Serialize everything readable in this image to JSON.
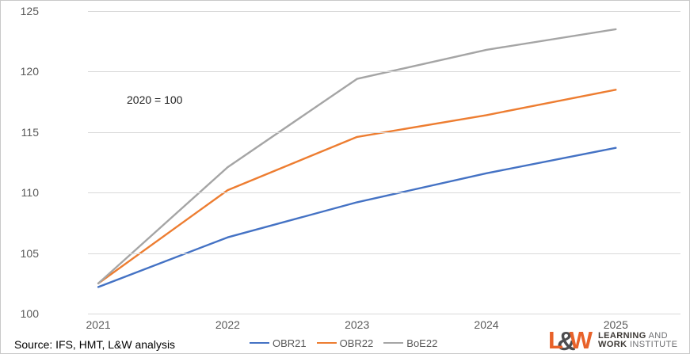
{
  "chart_data": {
    "type": "line",
    "title": "",
    "annotation": "2020 = 100",
    "x": [
      2021,
      2022,
      2023,
      2024,
      2025
    ],
    "xlim": [
      2020.92,
      2025.5
    ],
    "ylim": [
      100,
      125
    ],
    "yticks": [
      100,
      105,
      110,
      115,
      120,
      125
    ],
    "grid": true,
    "legend_position": "bottom",
    "series": [
      {
        "name": "OBR21",
        "color": "#4472C4",
        "values": [
          102.2,
          106.3,
          109.2,
          111.6,
          113.7
        ]
      },
      {
        "name": "OBR22",
        "color": "#ED7D31",
        "values": [
          102.5,
          110.2,
          114.6,
          116.4,
          118.5
        ]
      },
      {
        "name": "BoE22",
        "color": "#A5A5A5",
        "values": [
          102.5,
          112.1,
          119.4,
          121.8,
          123.5
        ]
      }
    ]
  },
  "footer": {
    "source": "Source: IFS, HMT, L&W analysis"
  },
  "logo": {
    "letter_l": "L",
    "amp": "&",
    "letter_w": "W",
    "line1_bold": "LEARNING",
    "line1_light": "AND",
    "line2_bold": "WORK",
    "line2_light": "INSTITUTE",
    "orange_color": "#E8622A",
    "amp_color": "#4D4D4F",
    "text_bold_color": "#3D3935",
    "text_light_color": "#6E6F72"
  },
  "colors": {
    "gridline": "#D9D9D9",
    "tick_label": "#595959"
  }
}
